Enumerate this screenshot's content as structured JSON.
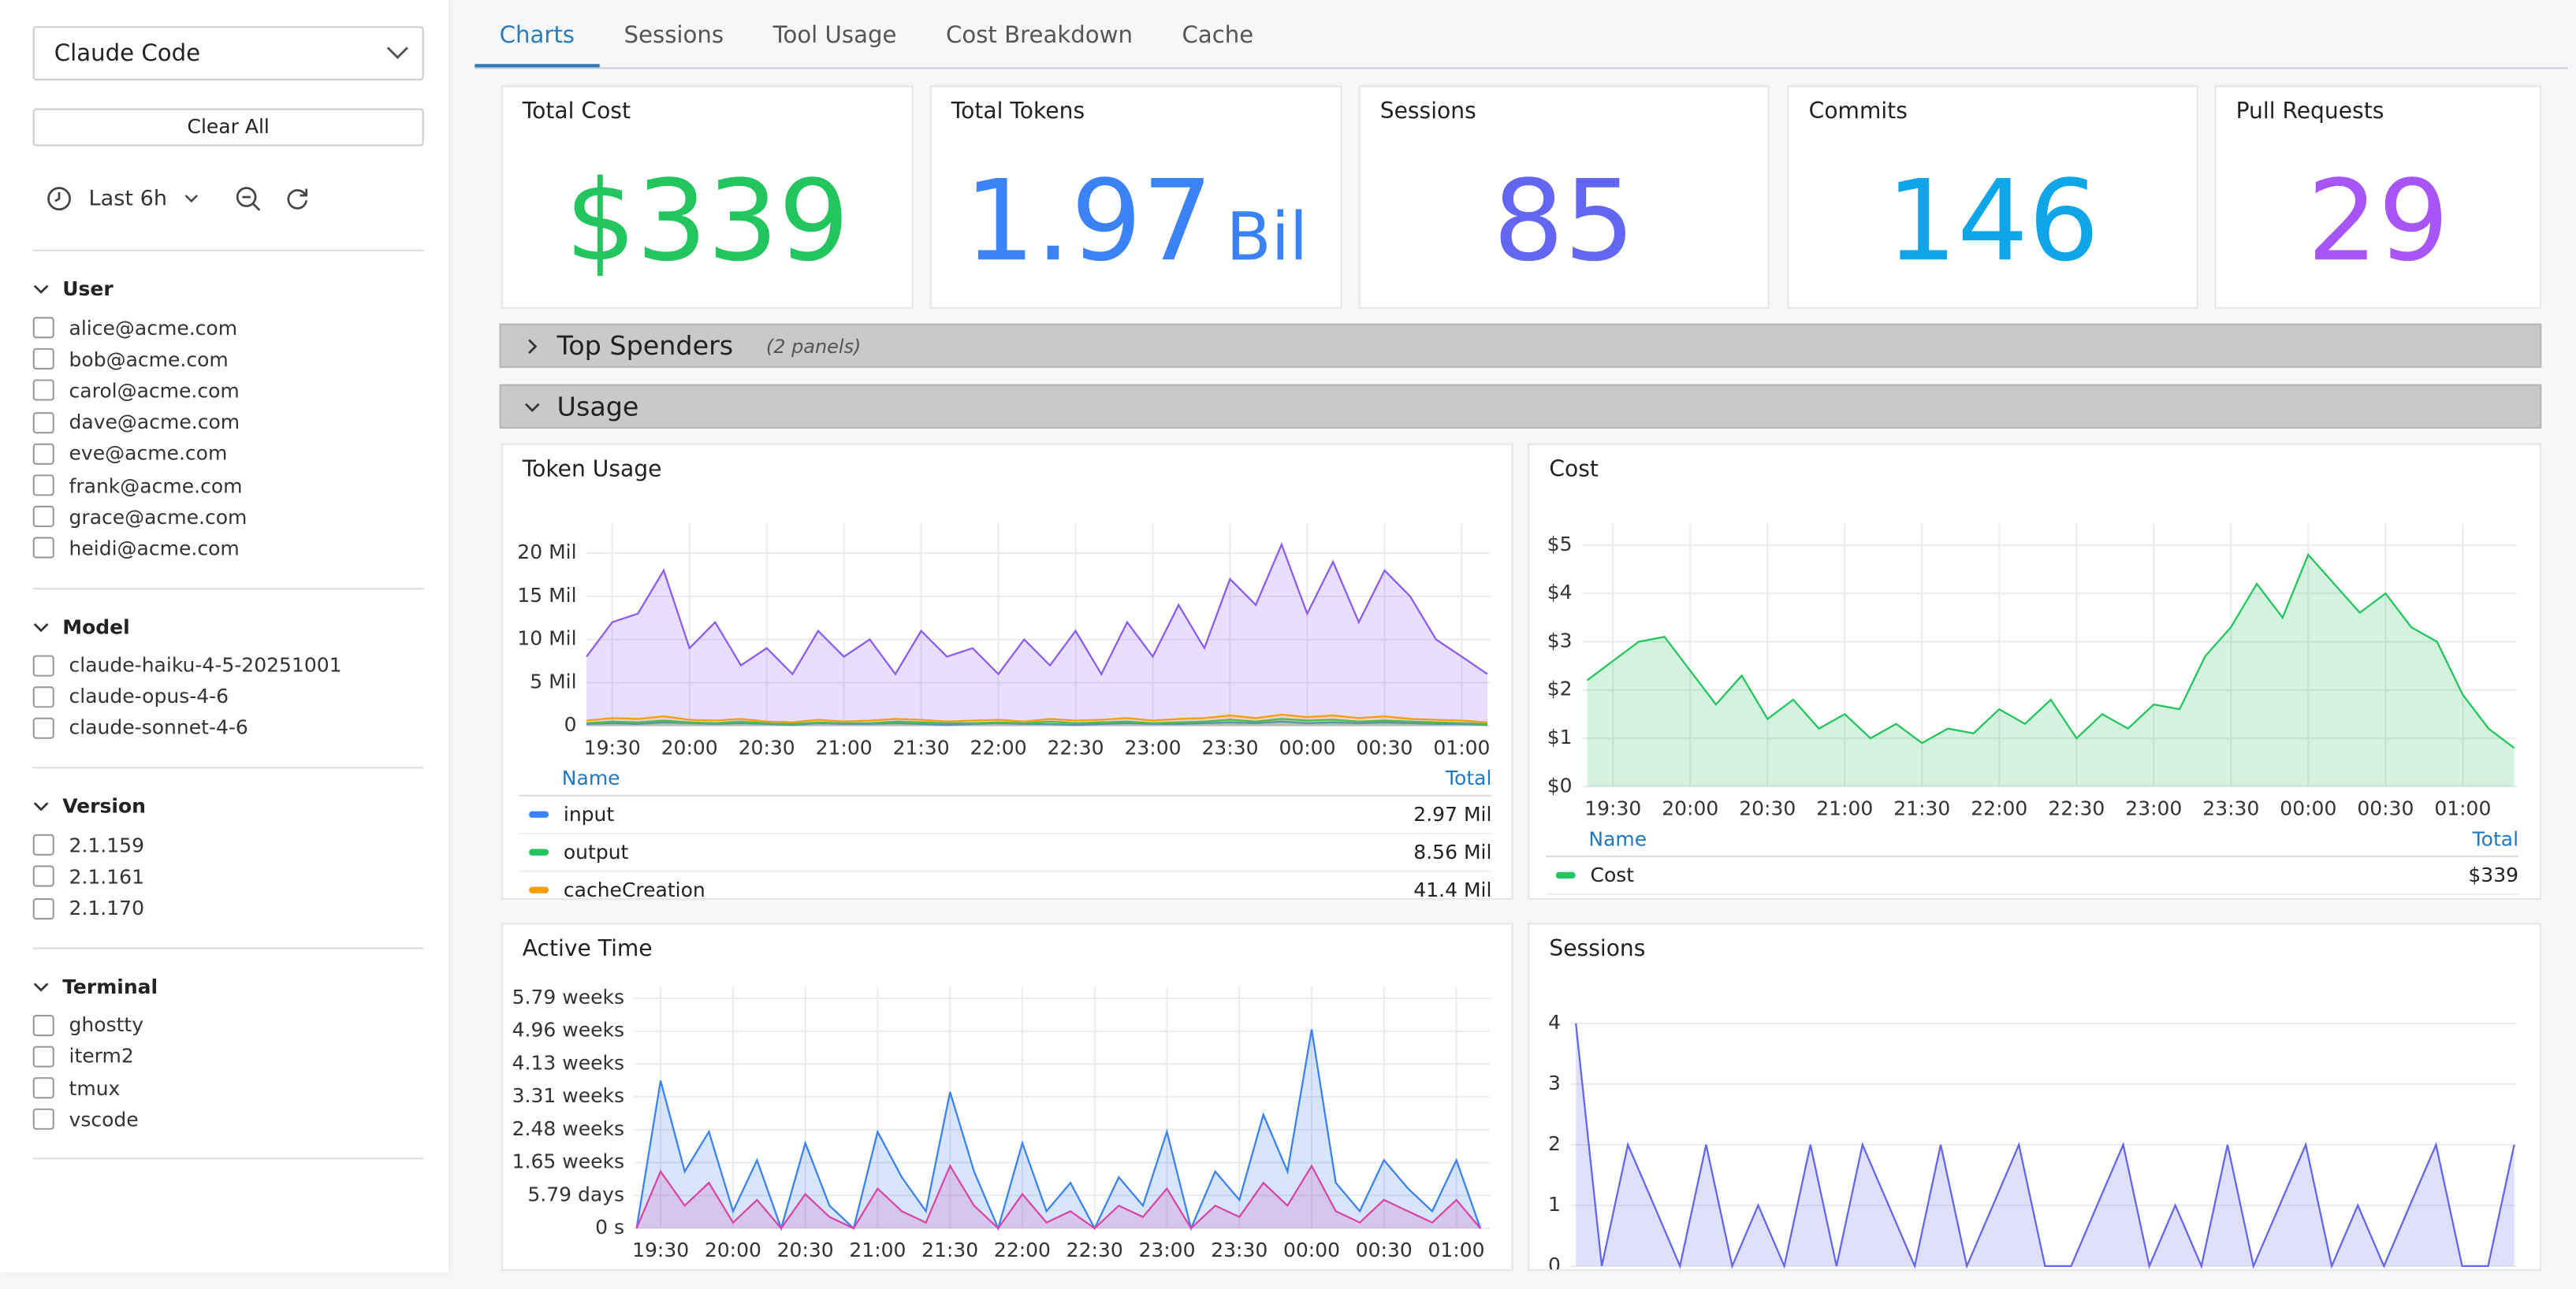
{
  "sidebar": {
    "datasource": "Claude Code",
    "clear_all": "Clear All",
    "time_range": "Last 6h",
    "filters": [
      {
        "title": "User",
        "options": [
          "alice@acme.com",
          "bob@acme.com",
          "carol@acme.com",
          "dave@acme.com",
          "eve@acme.com",
          "frank@acme.com",
          "grace@acme.com",
          "heidi@acme.com"
        ]
      },
      {
        "title": "Model",
        "options": [
          "claude-haiku-4-5-20251001",
          "claude-opus-4-6",
          "claude-sonnet-4-6"
        ]
      },
      {
        "title": "Version",
        "options": [
          "2.1.159",
          "2.1.161",
          "2.1.170"
        ]
      },
      {
        "title": "Terminal",
        "options": [
          "ghostty",
          "iterm2",
          "tmux",
          "vscode"
        ]
      }
    ]
  },
  "tabs": [
    {
      "label": "Charts",
      "active": true
    },
    {
      "label": "Sessions",
      "active": false
    },
    {
      "label": "Tool Usage",
      "active": false
    },
    {
      "label": "Cost Breakdown",
      "active": false
    },
    {
      "label": "Cache",
      "active": false
    }
  ],
  "stats": [
    {
      "title": "Total Cost",
      "value": 339,
      "value_label": "$339",
      "color": "#22c55e"
    },
    {
      "title": "Total Tokens",
      "value": 1.97,
      "unit": "Bil",
      "color": "#3b82f6"
    },
    {
      "title": "Sessions",
      "value": 85,
      "color": "#6366f1"
    },
    {
      "title": "Commits",
      "value": 146,
      "color": "#0ea5e9"
    },
    {
      "title": "Pull Requests",
      "value": 29,
      "color": "#a855f7"
    }
  ],
  "rows": [
    {
      "title": "Top Spenders",
      "note": "(2 panels)",
      "collapsed": true
    },
    {
      "title": "Usage",
      "collapsed": false
    }
  ],
  "chart_data": [
    {
      "type": "line",
      "title": "Token Usage",
      "x": [
        "19:20",
        "19:30",
        "19:40",
        "19:50",
        "20:00",
        "20:10",
        "20:20",
        "20:30",
        "20:40",
        "20:50",
        "21:00",
        "21:10",
        "21:20",
        "21:30",
        "21:40",
        "21:50",
        "22:00",
        "22:10",
        "22:20",
        "22:30",
        "22:40",
        "22:50",
        "23:00",
        "23:10",
        "23:20",
        "23:30",
        "23:40",
        "23:50",
        "00:00",
        "00:10",
        "00:20",
        "00:30",
        "00:40",
        "00:50",
        "01:00",
        "01:10"
      ],
      "xlim": [
        "19:20",
        "01:11"
      ],
      "xticks": [
        "19:30",
        "20:00",
        "20:30",
        "21:00",
        "21:30",
        "22:00",
        "22:30",
        "23:00",
        "23:30",
        "00:00",
        "00:30",
        "01:00"
      ],
      "ylim": [
        0,
        23.4
      ],
      "yticks": [
        {
          "value": 0,
          "label": "0"
        },
        {
          "value": 5,
          "label": "5 Mil"
        },
        {
          "value": 10,
          "label": "10 Mil"
        },
        {
          "value": 15,
          "label": "15 Mil"
        },
        {
          "value": 20,
          "label": "20 Mil"
        }
      ],
      "grid": true,
      "legend_columns": [
        "Name",
        "Total"
      ],
      "series": [
        {
          "color": "#8b5cf6",
          "values": [
            8,
            12,
            13,
            18,
            9,
            12,
            7,
            9,
            6,
            11,
            8,
            10,
            6,
            11,
            8,
            9,
            6,
            10,
            7,
            11,
            6,
            12,
            8,
            14,
            9,
            17,
            14,
            21,
            13,
            19,
            12,
            18,
            15,
            10,
            8,
            6
          ]
        },
        {
          "name": "input",
          "color": "#3b82f6",
          "total": {
            "value": 2.97,
            "label": "2.97 Mil"
          },
          "values": [
            0.2,
            0.3,
            0.2,
            0.4,
            0.3,
            0.2,
            0.3,
            0.2,
            0.1,
            0.3,
            0.2,
            0.2,
            0.3,
            0.2,
            0.1,
            0.2,
            0.3,
            0.2,
            0.2,
            0.1,
            0.2,
            0.3,
            0.2,
            0.2,
            0.3,
            0.4,
            0.3,
            0.5,
            0.3,
            0.4,
            0.3,
            0.4,
            0.3,
            0.2,
            0.2,
            0.1
          ]
        },
        {
          "name": "output",
          "color": "#22c55e",
          "total": {
            "value": 8.56,
            "label": "8.56 Mil"
          },
          "values": [
            0.3,
            0.5,
            0.4,
            0.6,
            0.4,
            0.3,
            0.5,
            0.3,
            0.2,
            0.4,
            0.3,
            0.3,
            0.5,
            0.4,
            0.3,
            0.3,
            0.4,
            0.3,
            0.5,
            0.3,
            0.4,
            0.5,
            0.3,
            0.4,
            0.5,
            0.7,
            0.5,
            0.8,
            0.6,
            0.7,
            0.5,
            0.6,
            0.5,
            0.4,
            0.3,
            0.2
          ]
        },
        {
          "name": "cacheCreation",
          "color": "#f59e0b",
          "total": {
            "value": 41.4,
            "label": "41.4 Mil"
          },
          "values": [
            0.6,
            0.9,
            0.8,
            1.1,
            0.7,
            0.6,
            0.8,
            0.5,
            0.4,
            0.7,
            0.5,
            0.6,
            0.8,
            0.7,
            0.5,
            0.6,
            0.7,
            0.5,
            0.8,
            0.6,
            0.7,
            0.9,
            0.6,
            0.8,
            0.9,
            1.2,
            0.9,
            1.3,
            1.0,
            1.2,
            0.9,
            1.1,
            0.8,
            0.7,
            0.6,
            0.4
          ]
        }
      ]
    },
    {
      "type": "line",
      "title": "Cost",
      "x": [
        "19:20",
        "19:30",
        "19:40",
        "19:50",
        "20:00",
        "20:10",
        "20:20",
        "20:30",
        "20:40",
        "20:50",
        "21:00",
        "21:10",
        "21:20",
        "21:30",
        "21:40",
        "21:50",
        "22:00",
        "22:10",
        "22:20",
        "22:30",
        "22:40",
        "22:50",
        "23:00",
        "23:10",
        "23:20",
        "23:30",
        "23:40",
        "23:50",
        "00:00",
        "00:10",
        "00:20",
        "00:30",
        "00:40",
        "00:50",
        "01:00",
        "01:10",
        "01:20"
      ],
      "xlim": [
        "19:18",
        "01:21"
      ],
      "xticks": [
        "19:30",
        "20:00",
        "20:30",
        "21:00",
        "21:30",
        "22:00",
        "22:30",
        "23:00",
        "23:30",
        "00:00",
        "00:30",
        "01:00"
      ],
      "ylim": [
        0,
        5.44
      ],
      "yticks": [
        {
          "value": 0,
          "label": "$0"
        },
        {
          "value": 1,
          "label": "$1"
        },
        {
          "value": 2,
          "label": "$2"
        },
        {
          "value": 3,
          "label": "$3"
        },
        {
          "value": 4,
          "label": "$4"
        },
        {
          "value": 5,
          "label": "$5"
        }
      ],
      "grid": true,
      "legend_columns": [
        "Name",
        "Total"
      ],
      "series": [
        {
          "name": "Cost",
          "color": "#22c55e",
          "total": {
            "value": 339,
            "label": "$339"
          },
          "values": [
            2.2,
            2.6,
            3.0,
            3.1,
            2.4,
            1.7,
            2.3,
            1.4,
            1.8,
            1.2,
            1.5,
            1.0,
            1.3,
            0.9,
            1.2,
            1.1,
            1.6,
            1.3,
            1.8,
            1.0,
            1.5,
            1.2,
            1.7,
            1.6,
            2.7,
            3.3,
            4.2,
            3.5,
            4.8,
            4.2,
            3.6,
            4.0,
            3.3,
            3.0,
            1.9,
            1.2,
            0.8
          ]
        }
      ]
    },
    {
      "type": "line",
      "title": "Active Time",
      "x": [
        "19:20",
        "19:30",
        "19:40",
        "19:50",
        "20:00",
        "20:10",
        "20:20",
        "20:30",
        "20:40",
        "20:50",
        "21:00",
        "21:10",
        "21:20",
        "21:30",
        "21:40",
        "21:50",
        "22:00",
        "22:10",
        "22:20",
        "22:30",
        "22:40",
        "22:50",
        "23:00",
        "23:10",
        "23:20",
        "23:30",
        "23:40",
        "23:50",
        "00:00",
        "00:10",
        "00:20",
        "00:30",
        "00:40",
        "00:50",
        "01:00",
        "01:10"
      ],
      "xlim": [
        "19:19",
        "01:14"
      ],
      "xticks": [
        "19:30",
        "20:00",
        "20:30",
        "21:00",
        "21:30",
        "22:00",
        "22:30",
        "23:00",
        "23:30",
        "00:00",
        "00:30",
        "01:00"
      ],
      "ylim": [
        0,
        42.5
      ],
      "yticks": [
        {
          "value": 0,
          "label": "0 s"
        },
        {
          "value": 5.786,
          "label": "5.79 days"
        },
        {
          "value": 11.572,
          "label": "1.65 weeks"
        },
        {
          "value": 17.358,
          "label": "2.48 weeks"
        },
        {
          "value": 23.144,
          "label": "3.31 weeks"
        },
        {
          "value": 28.93,
          "label": "4.13 weeks"
        },
        {
          "value": 34.716,
          "label": "4.96 weeks"
        },
        {
          "value": 40.502,
          "label": "5.79 weeks"
        }
      ],
      "grid": true,
      "series": [
        {
          "color": "#3b82f6",
          "values": [
            0,
            26,
            10,
            17,
            3,
            12,
            0,
            15,
            4,
            0,
            17,
            9,
            3,
            24,
            10,
            0,
            15,
            3,
            8,
            0,
            9,
            4,
            17,
            0,
            10,
            5,
            20,
            10,
            35,
            8,
            3,
            12,
            7,
            3,
            12,
            0
          ]
        },
        {
          "color": "#d946a8",
          "values": [
            0,
            10,
            4,
            8,
            1,
            5,
            0,
            6,
            2,
            0,
            7,
            3,
            1,
            11,
            4,
            0,
            6,
            1,
            3,
            0,
            4,
            2,
            7,
            0,
            4,
            2,
            8,
            4,
            11,
            3,
            1,
            5,
            3,
            1,
            5,
            0
          ]
        }
      ]
    },
    {
      "type": "line",
      "title": "Sessions",
      "x": [
        "19:20",
        "19:30",
        "19:40",
        "19:50",
        "20:00",
        "20:10",
        "20:20",
        "20:30",
        "20:40",
        "20:50",
        "21:00",
        "21:10",
        "21:20",
        "21:30",
        "21:40",
        "21:50",
        "22:00",
        "22:10",
        "22:20",
        "22:30",
        "22:40",
        "22:50",
        "23:00",
        "23:10",
        "23:20",
        "23:30",
        "23:40",
        "23:50",
        "00:00",
        "00:10",
        "00:20",
        "00:30",
        "00:40",
        "00:50",
        "01:00",
        "01:10",
        "01:20"
      ],
      "xlim": [
        "19:18",
        "01:21"
      ],
      "ylim": [
        0,
        4.6
      ],
      "yticks": [
        0,
        1,
        2,
        3,
        4
      ],
      "grid": true,
      "series": [
        {
          "color": "#6366f1",
          "values": [
            4,
            0,
            2,
            1,
            0,
            2,
            0,
            1,
            0,
            2,
            0,
            2,
            1,
            0,
            2,
            0,
            1,
            2,
            0,
            0,
            1,
            2,
            0,
            1,
            0,
            2,
            0,
            1,
            2,
            0,
            1,
            0,
            1,
            2,
            0,
            0,
            2
          ]
        }
      ]
    }
  ]
}
